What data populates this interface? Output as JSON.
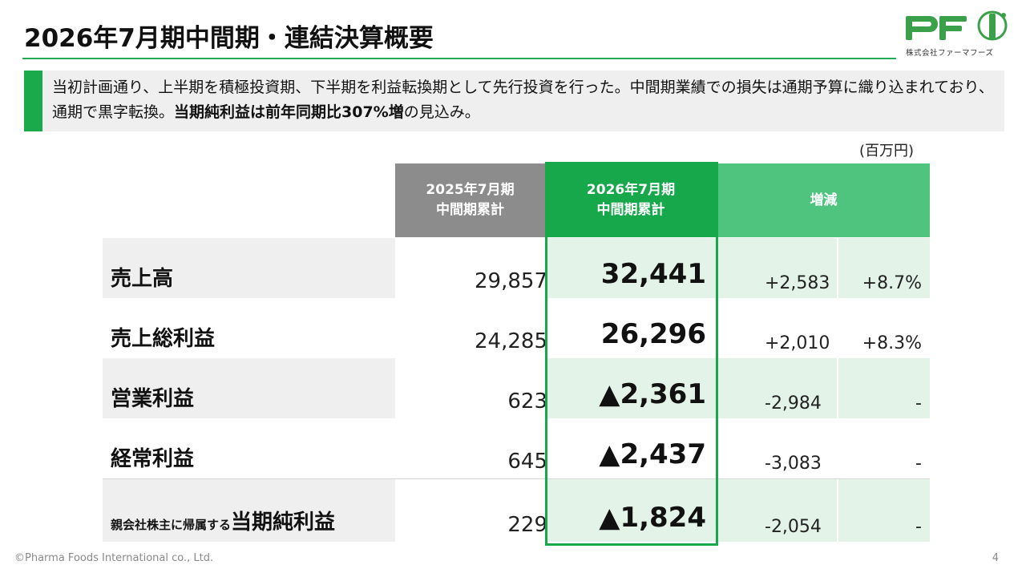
{
  "title": "2026年7月期中間期・連結決算概要",
  "logo": {
    "mark": "PFI",
    "company": "株式会社ファーマフーズ"
  },
  "summary": {
    "part1": "当初計画通り、上半期を積極投資期、下半期を利益転換期として先行投資を行った。中間期業績での損失は通期予算に織り込まれており、通期で黒字転換。",
    "bold": "当期純利益は前年同期比307%増",
    "part2": "の見込み。"
  },
  "unit": "(百万円)",
  "table": {
    "headers": {
      "prev_line1": "2025年7月期",
      "prev_line2": "中間期累計",
      "cur_line1": "2026年7月期",
      "cur_line2": "中間期累計",
      "diff": "増減"
    },
    "rows": [
      {
        "label": "売上高",
        "label_prefix": "",
        "prev": "29,857",
        "cur": "32,441",
        "diff_abs": "+2,583",
        "diff_pct": "+8.7%"
      },
      {
        "label": "売上総利益",
        "label_prefix": "",
        "prev": "24,285",
        "cur": "26,296",
        "diff_abs": "+2,010",
        "diff_pct": "+8.3%"
      },
      {
        "label": "営業利益",
        "label_prefix": "",
        "prev": "623",
        "cur": "▲2,361",
        "diff_abs": "-2,984",
        "diff_pct": "-"
      },
      {
        "label": "経常利益",
        "label_prefix": "",
        "prev": "645",
        "cur": "▲2,437",
        "diff_abs": "-3,083",
        "diff_pct": "-"
      },
      {
        "label": "当期純利益",
        "label_prefix": "親会社株主に帰属する",
        "prev": "229",
        "cur": "▲1,824",
        "diff_abs": "-2,054",
        "diff_pct": "-"
      }
    ]
  },
  "footer": {
    "copyright": "©Pharma Foods International co., Ltd.",
    "page": "4"
  },
  "colors": {
    "brand_green": "#16a84a",
    "light_green": "#4fc47f",
    "gray_header": "#8c8c8c"
  }
}
